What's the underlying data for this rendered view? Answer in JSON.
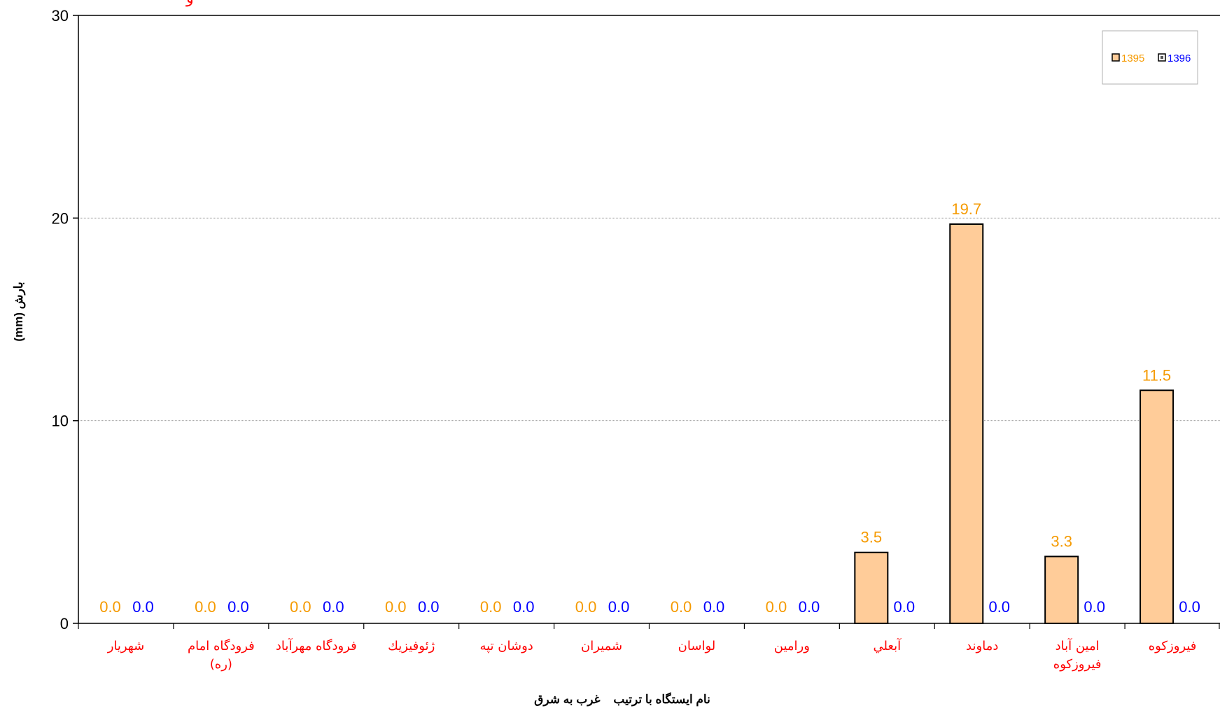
{
  "chart_data": {
    "type": "bar",
    "title": "",
    "xlabel": "نام ایستگاه با ترتیب    غرب به شرق",
    "ylabel": "بارش (mm)",
    "ylim": [
      0,
      30
    ],
    "yticks": [
      "0",
      "10",
      "20",
      "30"
    ],
    "grid": true,
    "legend": "top-right",
    "categories": [
      [
        "شهريار"
      ],
      [
        "فرودگاه امام",
        "(ره)"
      ],
      [
        "فرودگاه مهرآباد"
      ],
      [
        "ژئوفيزيك"
      ],
      [
        "دوشان تپه"
      ],
      [
        "شميران"
      ],
      [
        "لواسان"
      ],
      [
        "ورامين"
      ],
      [
        "آبعلي"
      ],
      [
        "دماوند"
      ],
      [
        "امين آباد",
        "فيروزكوه"
      ],
      [
        "فيروزكوه"
      ]
    ],
    "series": [
      {
        "name": "1395",
        "color": "#FFCC99",
        "label_color": "#F59A00",
        "values": [
          0.0,
          0.0,
          0.0,
          0.0,
          0.0,
          0.0,
          0.0,
          0.0,
          3.5,
          19.7,
          3.3,
          11.5
        ],
        "labels": [
          "0.0",
          "0.0",
          "0.0",
          "0.0",
          "0.0",
          "0.0",
          "0.0",
          "0.0",
          "3.5",
          "19.7",
          "3.3",
          "11.5"
        ]
      },
      {
        "name": "1396",
        "color": "#FFFFFF",
        "label_color": "#0000FF",
        "values": [
          0.0,
          0.0,
          0.0,
          0.0,
          0.0,
          0.0,
          0.0,
          0.0,
          0.0,
          0.0,
          0.0,
          0.0
        ],
        "labels": [
          "0.0",
          "0.0",
          "0.0",
          "0.0",
          "0.0",
          "0.0",
          "0.0",
          "0.0",
          "0.0",
          "0.0",
          "0.0",
          "0.0"
        ]
      }
    ],
    "category_label_color": "#FF0000",
    "top_fragment": "و"
  }
}
